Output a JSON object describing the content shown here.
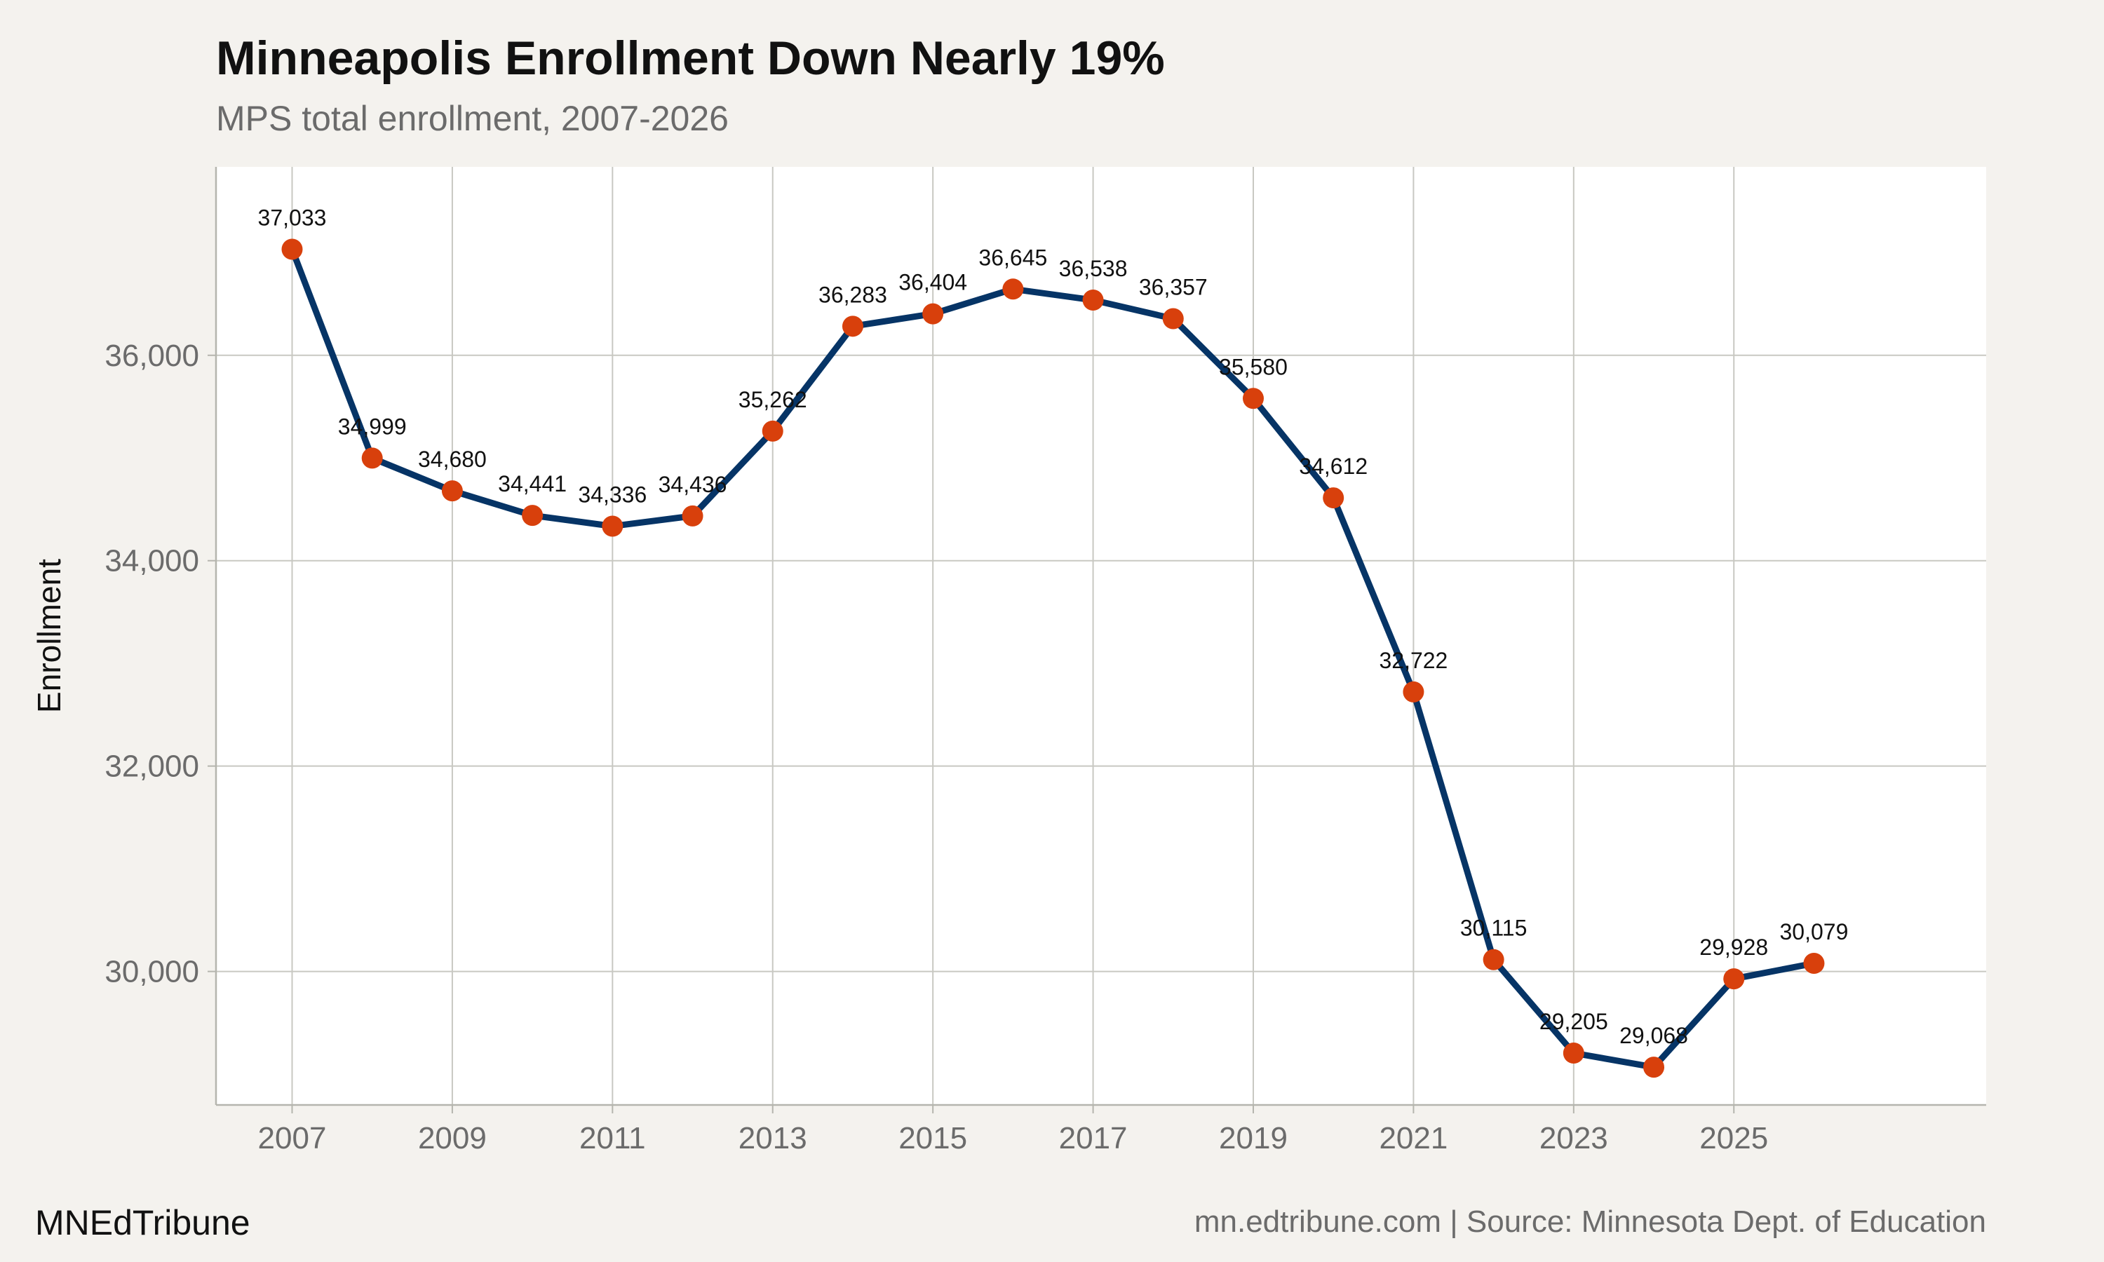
{
  "header": {
    "title": "Minneapolis Enrollment Down Nearly 19%",
    "subtitle": "MPS total enrollment, 2007-2026"
  },
  "footer": {
    "brand": "MNEdTribune",
    "source": "mn.edtribune.com | Source: Minnesota Dept. of Education"
  },
  "colors": {
    "background": "#f4f2ee",
    "panel": "#ffffff",
    "grid": "#c8c8c2",
    "line": "#063466",
    "point": "#d8400c"
  },
  "chart_data": {
    "type": "line",
    "title": "Minneapolis Enrollment Down Nearly 19%",
    "subtitle": "MPS total enrollment, 2007-2026",
    "xlabel": "",
    "ylabel": "Enrollment",
    "x": [
      2007,
      2008,
      2009,
      2010,
      2011,
      2012,
      2013,
      2014,
      2015,
      2016,
      2017,
      2018,
      2019,
      2020,
      2021,
      2022,
      2023,
      2024,
      2025,
      2026
    ],
    "series": [
      {
        "values": [
          37033,
          34999,
          34680,
          34441,
          34336,
          34436,
          35262,
          36283,
          36404,
          36645,
          36538,
          36357,
          35580,
          34612,
          32722,
          30115,
          29205,
          29068,
          29928,
          30079
        ]
      }
    ],
    "data_labels": [
      "37,033",
      "34,999",
      "34,680",
      "34,441",
      "34,336",
      "34,436",
      "35,262",
      "36,283",
      "36,404",
      "36,645",
      "36,538",
      "36,357",
      "35,580",
      "34,612",
      "32,722",
      "30,115",
      "29,205",
      "29,068",
      "29,928",
      "30,079"
    ],
    "x_ticks": [
      2007,
      2009,
      2011,
      2013,
      2015,
      2017,
      2019,
      2021,
      2023,
      2025
    ],
    "x_tick_labels": [
      "2007",
      "2009",
      "2011",
      "2013",
      "2015",
      "2017",
      "2019",
      "2021",
      "2023",
      "2025"
    ],
    "y_ticks": [
      30000,
      32000,
      34000,
      36000
    ],
    "y_tick_labels": [
      "30,000",
      "32,000",
      "34,000",
      "36,000"
    ],
    "xlim": [
      2006.05,
      2028.15
    ],
    "ylim": [
      28700,
      37835
    ],
    "grid": true,
    "legend": "none"
  }
}
